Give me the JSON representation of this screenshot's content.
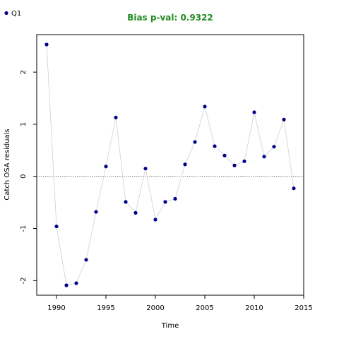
{
  "chart_data": {
    "type": "line",
    "title": "Bias p-val: 0.9322",
    "title_color": "#228B22",
    "xlabel": "Time",
    "ylabel": "Catch OSA residuals",
    "xlim": [
      1988,
      2015
    ],
    "ylim": [
      -2.28,
      2.72
    ],
    "x_ticks": [
      1990,
      1995,
      2000,
      2005,
      2010,
      2015
    ],
    "y_ticks": [
      -2,
      -1,
      0,
      1,
      2
    ],
    "reference_line": 0,
    "legend_position": "top-left",
    "colors": {
      "line": "#d0d0d0",
      "point": "#00008B",
      "reference": "#555555"
    },
    "series": [
      {
        "name": "Q1",
        "x": [
          1989,
          1990,
          1991,
          1992,
          1993,
          1994,
          1995,
          1996,
          1997,
          1998,
          1999,
          2000,
          2001,
          2002,
          2003,
          2004,
          2005,
          2006,
          2007,
          2008,
          2009,
          2010,
          2011,
          2012,
          2013,
          2014
        ],
        "y": [
          2.53,
          -0.96,
          -2.09,
          -2.05,
          -1.6,
          -0.68,
          0.19,
          1.13,
          -0.49,
          -0.7,
          0.15,
          -0.83,
          -0.49,
          -0.43,
          0.23,
          0.66,
          1.34,
          0.58,
          0.4,
          0.21,
          0.29,
          1.23,
          0.38,
          0.57,
          1.09,
          -0.23
        ]
      }
    ]
  }
}
